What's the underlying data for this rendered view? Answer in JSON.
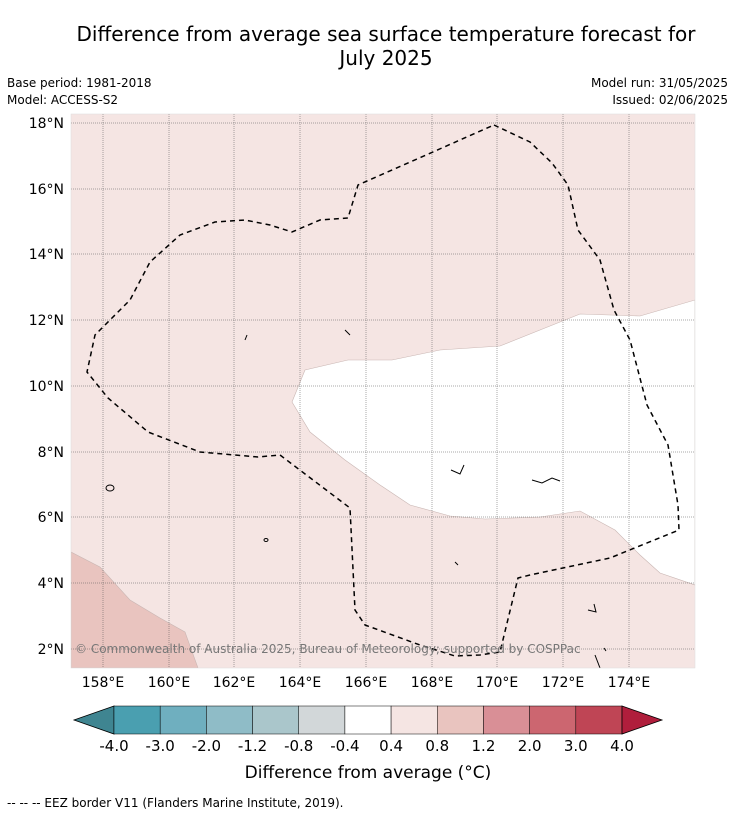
{
  "title_line1": "Difference from average sea surface temperature forecast for",
  "title_line2": "July 2025",
  "base_period": "Base period: 1981-2018",
  "model": "Model: ACCESS-S2",
  "model_run": "Model run: 31/05/2025",
  "issued": "Issued: 02/06/2025",
  "copyright": "© Commonwealth of Australia 2025, Bureau of Meteorology; supported by COSPPac",
  "lat_ticks": [
    "18°N",
    "16°N",
    "14°N",
    "12°N",
    "10°N",
    "8°N",
    "6°N",
    "4°N",
    "2°N"
  ],
  "lon_ticks": [
    "158°E",
    "160°E",
    "162°E",
    "164°E",
    "166°E",
    "168°E",
    "170°E",
    "172°E",
    "174°E"
  ],
  "colorbar": {
    "title": "Difference from average (°C)",
    "tick_labels": [
      "-4.0",
      "-3.0",
      "-2.0",
      "-1.2",
      "-0.8",
      "-0.4",
      "0.4",
      "0.8",
      "1.2",
      "2.0",
      "3.0",
      "4.0"
    ],
    "colors": [
      "#4a9fb0",
      "#6fafbf",
      "#8fbcc7",
      "#aac6cb",
      "#d2d7d9",
      "#ffffff",
      "#f5e5e3",
      "#e9c4bf",
      "#d98f96",
      "#cc6670",
      "#bf4555"
    ],
    "extend_low_color": "#3f8591",
    "extend_high_color": "#b01e3c"
  },
  "legend_note": "--  --  -- EEZ border V11 (Flanders Marine Institute, 2019)."
}
